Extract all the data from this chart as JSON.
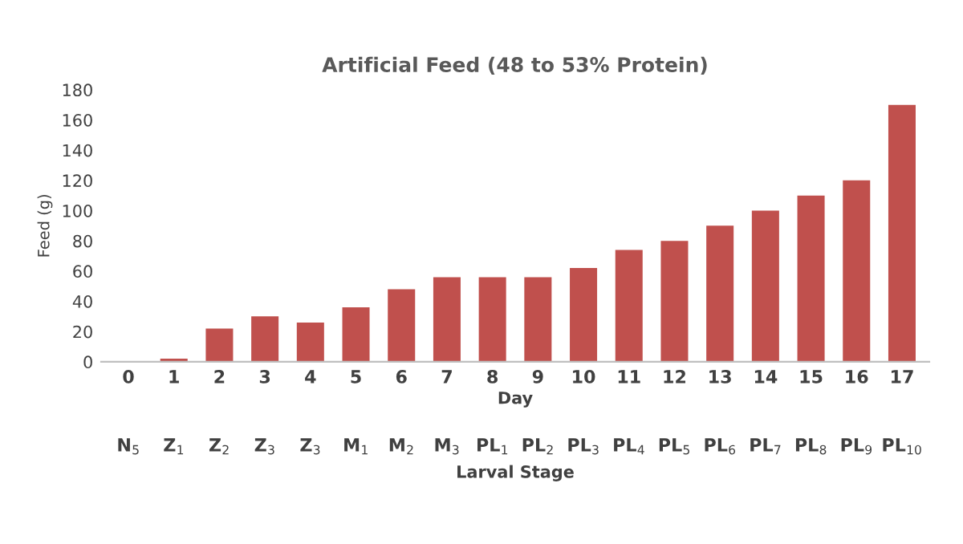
{
  "chart_data": {
    "type": "bar",
    "title": "Artificial Feed (48 to 53% Protein)",
    "xlabel": "Day",
    "ylabel": "Feed (g)",
    "categories": [
      "0",
      "1",
      "2",
      "3",
      "4",
      "5",
      "6",
      "7",
      "8",
      "9",
      "10",
      "11",
      "12",
      "13",
      "14",
      "15",
      "16",
      "17"
    ],
    "values": [
      0,
      2,
      22,
      30,
      26,
      36,
      48,
      56,
      56,
      56,
      62,
      74,
      80,
      90,
      100,
      110,
      120,
      170
    ],
    "color": "#c0504d",
    "ylim": [
      0,
      180
    ],
    "yticks": [
      0,
      20,
      40,
      60,
      80,
      100,
      120,
      140,
      160,
      180
    ],
    "grid": false,
    "annotations": [
      "N$_{5}$",
      "Z$_{1}$",
      "Z$_{2}$",
      "Z$_{3}$",
      "Z$_{3}$",
      "M$_{1}$",
      "M$_{2}$",
      "M$_{3}$",
      "PL$_{1}$",
      "PL$_{2}$",
      "PL$_{3}$",
      "PL$_{4}$",
      "PL$_{5}$",
      "PL$_{6}$",
      "PL$_{7}$",
      "PL$_{8}$",
      "PL$_{9}$",
      "PL$_{10}$",
      "Larval Stage"
    ]
  }
}
